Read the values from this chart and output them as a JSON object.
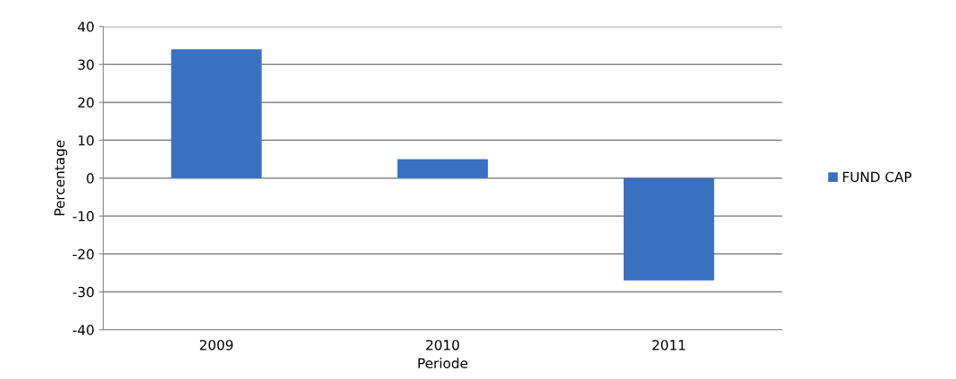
{
  "chart_data": {
    "type": "bar",
    "xlabel": "Periode",
    "ylabel": "Percentage",
    "categories": [
      "2009",
      "2010",
      "2011"
    ],
    "series": [
      {
        "name": "FUND CAP",
        "color": "#3a70c2",
        "values": [
          34,
          5,
          -27
        ]
      }
    ],
    "ylim": [
      -40,
      40
    ],
    "yticks": [
      -40,
      -30,
      -20,
      -10,
      0,
      10,
      20,
      30,
      40
    ],
    "grid": "y",
    "legend": "right"
  }
}
